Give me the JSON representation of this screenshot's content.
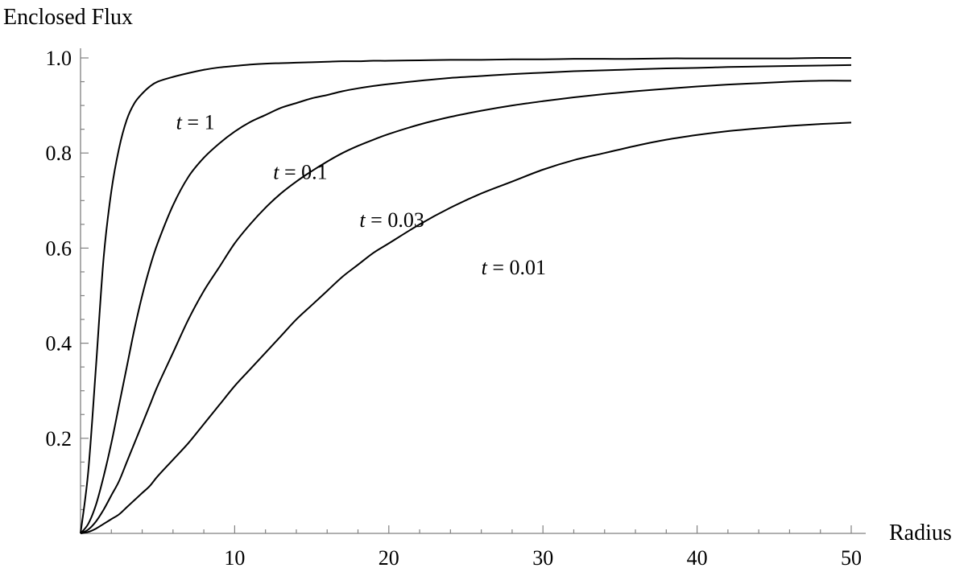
{
  "chart_data": {
    "type": "line",
    "title": "",
    "xlabel": "Radius",
    "ylabel": "Enclosed Flux",
    "xlim": [
      0,
      50
    ],
    "ylim": [
      0,
      1.0
    ],
    "x_ticks": [
      10,
      20,
      30,
      40,
      50
    ],
    "x_tick_labels": [
      "10",
      "20",
      "30",
      "40",
      "50"
    ],
    "y_ticks": [
      0.2,
      0.4,
      0.6,
      0.8,
      1.0
    ],
    "y_tick_labels": [
      "0.2",
      "0.4",
      "0.6",
      "0.8",
      "1.0"
    ],
    "grid": false,
    "legend": "none",
    "line_color": "#000000",
    "axis_color": "#808080",
    "x": [
      0,
      0.5,
      1,
      1.5,
      2,
      2.5,
      3,
      3.5,
      4,
      4.5,
      5,
      6,
      7,
      8,
      9,
      10,
      11,
      12,
      13,
      14,
      15,
      16,
      17,
      18,
      19,
      20,
      22,
      24,
      26,
      28,
      30,
      32,
      34,
      36,
      38,
      40,
      42,
      44,
      46,
      48,
      50
    ],
    "series": [
      {
        "label": "t = 1",
        "values": [
          0,
          0.13,
          0.35,
          0.58,
          0.72,
          0.81,
          0.87,
          0.905,
          0.925,
          0.94,
          0.95,
          0.96,
          0.968,
          0.975,
          0.98,
          0.983,
          0.986,
          0.988,
          0.989,
          0.99,
          0.991,
          0.992,
          0.993,
          0.993,
          0.994,
          0.994,
          0.995,
          0.996,
          0.996,
          0.997,
          0.997,
          0.998,
          0.998,
          0.998,
          0.999,
          0.999,
          0.999,
          0.999,
          0.999,
          1.0,
          1.0
        ]
      },
      {
        "label": "t = 0.1",
        "values": [
          0,
          0.02,
          0.06,
          0.12,
          0.19,
          0.27,
          0.35,
          0.43,
          0.5,
          0.56,
          0.61,
          0.69,
          0.75,
          0.79,
          0.82,
          0.845,
          0.865,
          0.88,
          0.895,
          0.905,
          0.915,
          0.922,
          0.93,
          0.936,
          0.941,
          0.945,
          0.952,
          0.958,
          0.962,
          0.966,
          0.969,
          0.972,
          0.974,
          0.976,
          0.978,
          0.979,
          0.981,
          0.982,
          0.983,
          0.984,
          0.985
        ]
      },
      {
        "label": "t = 0.03",
        "values": [
          0,
          0.008,
          0.025,
          0.05,
          0.08,
          0.11,
          0.15,
          0.19,
          0.23,
          0.27,
          0.31,
          0.38,
          0.45,
          0.51,
          0.56,
          0.61,
          0.65,
          0.685,
          0.715,
          0.74,
          0.762,
          0.782,
          0.8,
          0.815,
          0.828,
          0.84,
          0.86,
          0.876,
          0.889,
          0.9,
          0.909,
          0.917,
          0.924,
          0.93,
          0.935,
          0.94,
          0.944,
          0.947,
          0.95,
          0.952,
          0.952
        ]
      },
      {
        "label": "t = 0.01",
        "values": [
          0,
          0.003,
          0.01,
          0.02,
          0.03,
          0.04,
          0.055,
          0.07,
          0.085,
          0.1,
          0.12,
          0.155,
          0.19,
          0.23,
          0.27,
          0.31,
          0.345,
          0.38,
          0.415,
          0.45,
          0.48,
          0.51,
          0.54,
          0.565,
          0.59,
          0.61,
          0.65,
          0.685,
          0.715,
          0.74,
          0.765,
          0.785,
          0.8,
          0.815,
          0.828,
          0.838,
          0.846,
          0.852,
          0.857,
          0.861,
          0.864
        ]
      }
    ],
    "annotations": [
      {
        "text": "1",
        "x": 6.2,
        "y": 0.85
      },
      {
        "text": "0.1",
        "x": 12.5,
        "y": 0.745
      },
      {
        "text": "0.03",
        "x": 18.1,
        "y": 0.645
      },
      {
        "text": "0.01",
        "x": 26.0,
        "y": 0.545
      }
    ],
    "annotation_prefix": {
      "var": "t",
      "eq": " = "
    }
  }
}
